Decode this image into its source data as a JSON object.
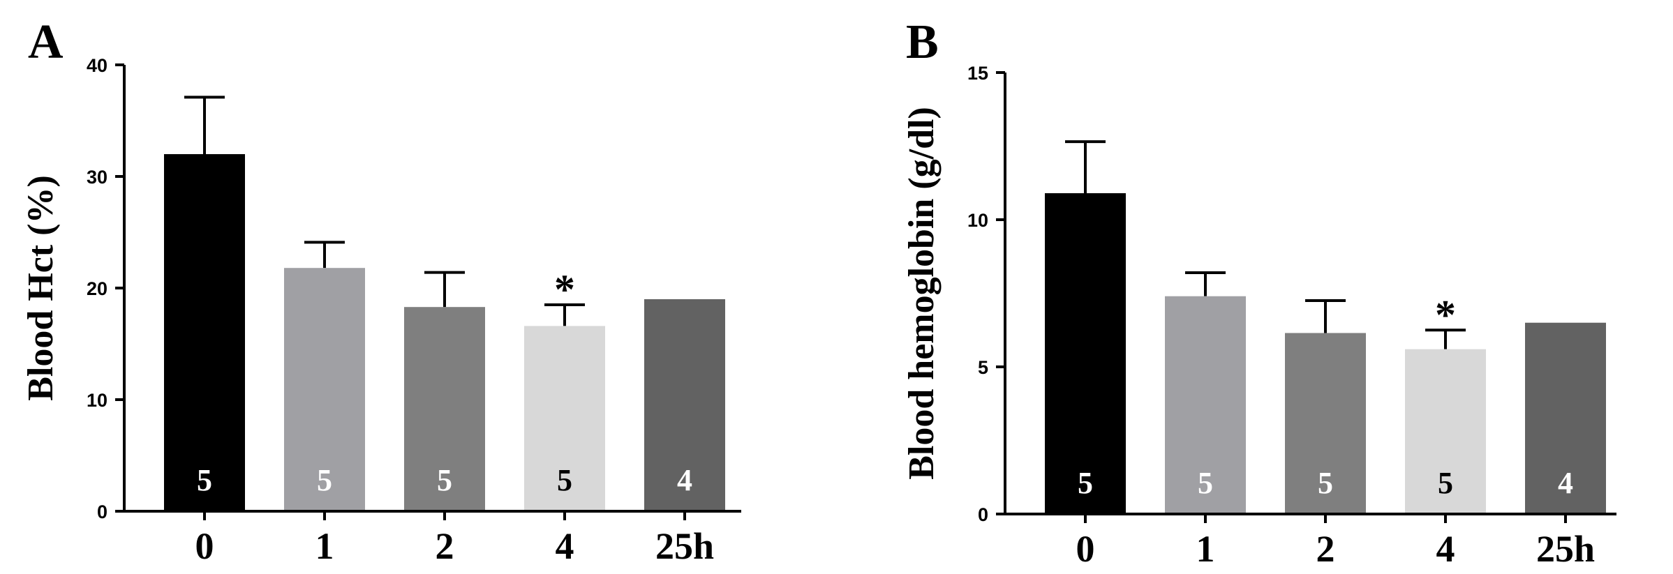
{
  "chart_data": [
    {
      "type": "bar",
      "panel": "A",
      "categories": [
        "0",
        "1",
        "2",
        "4",
        "25h"
      ],
      "values": [
        32,
        21.8,
        18.3,
        16.6,
        19
      ],
      "errors": [
        5.1,
        2.3,
        3.1,
        1.9,
        null
      ],
      "n_labels": [
        "5",
        "5",
        "5",
        "5",
        "4"
      ],
      "significance": [
        "",
        "",
        "",
        "*",
        ""
      ],
      "bar_colors": [
        "#000000",
        "#a0a0a4",
        "#7f7f7f",
        "#d8d8d8",
        "#626262"
      ],
      "n_label_colors": [
        "#ffffff",
        "#ffffff",
        "#ffffff",
        "#000000",
        "#ffffff"
      ],
      "title": "",
      "xlabel": "",
      "ylabel": "Blood Hct (%)",
      "ylim": [
        0,
        40
      ],
      "yticks": [
        "0",
        "10",
        "20",
        "30",
        "40"
      ],
      "grid": false,
      "legend": "none"
    },
    {
      "type": "bar",
      "panel": "B",
      "categories": [
        "0",
        "1",
        "2",
        "4",
        "25h"
      ],
      "values": [
        10.9,
        7.4,
        6.15,
        5.6,
        6.5
      ],
      "errors": [
        1.75,
        0.8,
        1.1,
        0.65,
        null
      ],
      "n_labels": [
        "5",
        "5",
        "5",
        "5",
        "4"
      ],
      "significance": [
        "",
        "",
        "",
        "*",
        ""
      ],
      "bar_colors": [
        "#000000",
        "#a0a0a4",
        "#7f7f7f",
        "#d8d8d8",
        "#626262"
      ],
      "n_label_colors": [
        "#ffffff",
        "#ffffff",
        "#ffffff",
        "#000000",
        "#ffffff"
      ],
      "title": "",
      "xlabel": "",
      "ylabel": "Blood hemoglobin (g/dl)",
      "ylim": [
        0,
        15
      ],
      "yticks": [
        "0",
        "5",
        "10",
        "15"
      ],
      "grid": false,
      "legend": "none"
    }
  ]
}
